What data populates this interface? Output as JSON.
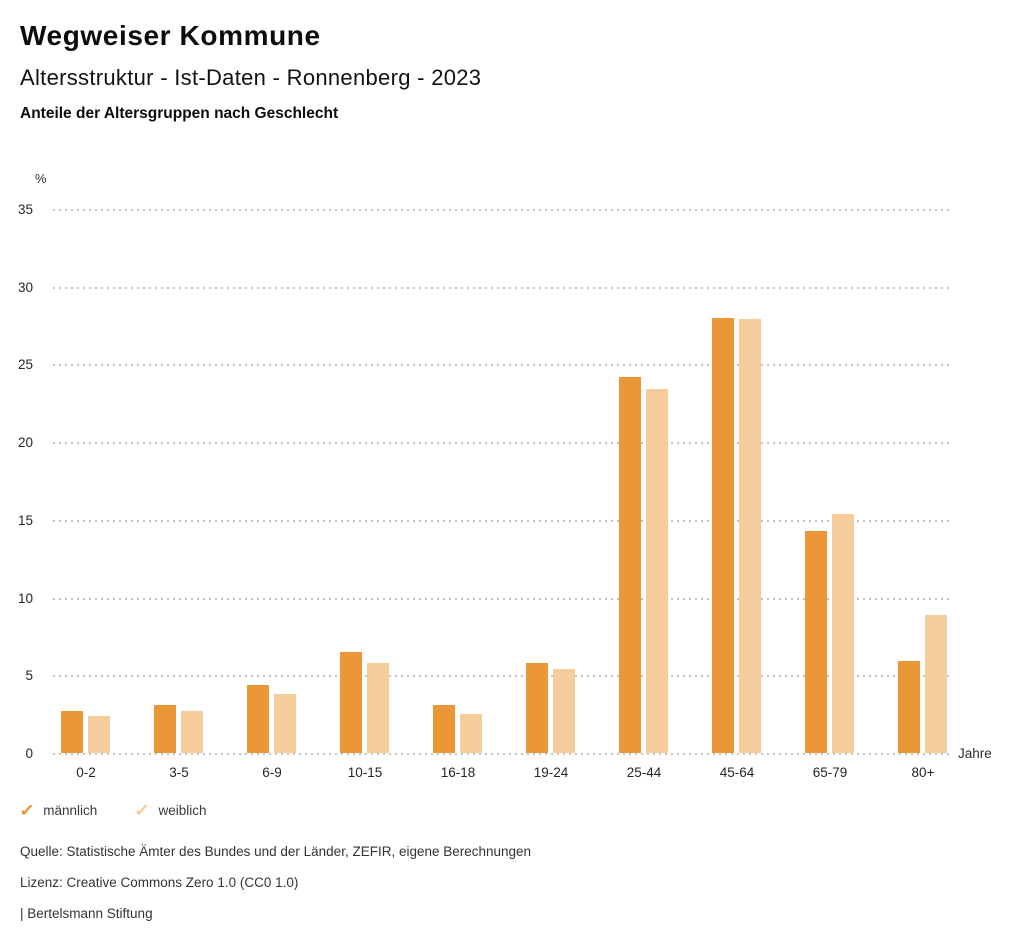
{
  "header": {
    "title": "Wegweiser Kommune",
    "subtitle": "Altersstruktur - Ist-Daten - Ronnenberg - 2023",
    "heading": "Anteile der Altersgruppen nach Geschlecht"
  },
  "chart_data": {
    "type": "bar",
    "title": "Anteile der Altersgruppen nach Geschlecht",
    "xlabel": "Jahre",
    "ylabel": "%",
    "ylim": [
      0,
      35
    ],
    "ytick_step": 5,
    "grid": "horizontal-dotted",
    "legend_position": "bottom-left",
    "categories": [
      "0-2",
      "3-5",
      "6-9",
      "10-15",
      "16-18",
      "19-24",
      "25-44",
      "45-64",
      "65-79",
      "80+"
    ],
    "series": [
      {
        "name": "männlich",
        "color": "#EC9737",
        "values": [
          2.7,
          3.1,
          4.4,
          6.5,
          3.1,
          5.8,
          24.2,
          28.0,
          14.3,
          5.9
        ]
      },
      {
        "name": "weiblich",
        "color": "#F5CC9B",
        "values": [
          2.4,
          2.7,
          3.8,
          5.8,
          2.5,
          5.4,
          23.4,
          27.9,
          15.4,
          8.9
        ]
      }
    ]
  },
  "legend": {
    "items": [
      {
        "icon": "check-icon",
        "label": "männlich",
        "color": "#EC9737"
      },
      {
        "icon": "check-icon",
        "label": "weiblich",
        "color": "#F5CC9B"
      }
    ]
  },
  "footer": {
    "source": "Quelle: Statistische Ämter des Bundes und der Länder, ZEFIR, eigene Berechnungen",
    "license": "Lizenz: Creative Commons Zero 1.0 (CC0 1.0)",
    "attribution": "| Bertelsmann Stiftung"
  }
}
